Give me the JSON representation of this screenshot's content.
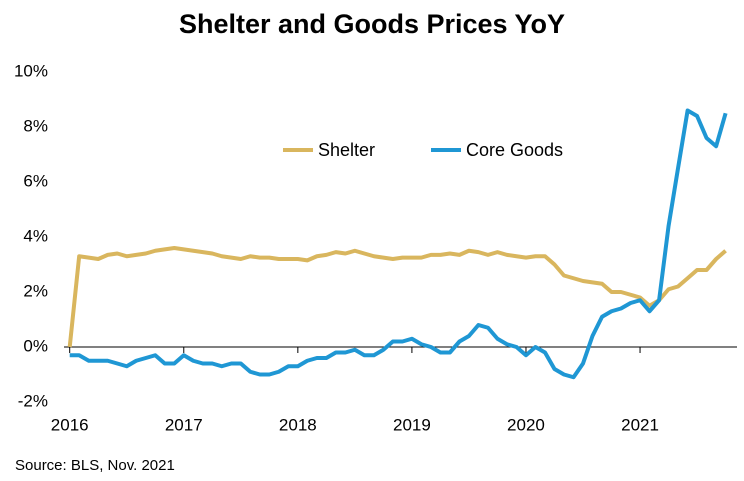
{
  "chart_data": {
    "type": "line",
    "title": "Shelter and Goods Prices YoY",
    "source": "Source: BLS, Nov. 2021",
    "x": [
      2016,
      2016.083,
      2016.167,
      2016.25,
      2016.333,
      2016.417,
      2016.5,
      2016.583,
      2016.667,
      2016.75,
      2016.833,
      2016.917,
      2017,
      2017.083,
      2017.167,
      2017.25,
      2017.333,
      2017.417,
      2017.5,
      2017.583,
      2017.667,
      2017.75,
      2017.833,
      2017.917,
      2018,
      2018.083,
      2018.167,
      2018.25,
      2018.333,
      2018.417,
      2018.5,
      2018.583,
      2018.667,
      2018.75,
      2018.833,
      2018.917,
      2019,
      2019.083,
      2019.167,
      2019.25,
      2019.333,
      2019.417,
      2019.5,
      2019.583,
      2019.667,
      2019.75,
      2019.833,
      2019.917,
      2020,
      2020.083,
      2020.167,
      2020.25,
      2020.333,
      2020.417,
      2020.5,
      2020.583,
      2020.667,
      2020.75,
      2020.833,
      2020.917,
      2021,
      2021.083,
      2021.167,
      2021.25,
      2021.333,
      2021.417,
      2021.5,
      2021.583,
      2021.667,
      2021.75
    ],
    "series": [
      {
        "name": "Shelter",
        "color": "#d9b65e",
        "values": [
          0,
          3.3,
          3.25,
          3.2,
          3.35,
          3.4,
          3.3,
          3.35,
          3.4,
          3.5,
          3.55,
          3.6,
          3.55,
          3.5,
          3.45,
          3.4,
          3.3,
          3.25,
          3.2,
          3.3,
          3.25,
          3.25,
          3.2,
          3.2,
          3.2,
          3.15,
          3.3,
          3.35,
          3.45,
          3.4,
          3.5,
          3.4,
          3.3,
          3.25,
          3.2,
          3.25,
          3.25,
          3.25,
          3.35,
          3.35,
          3.4,
          3.35,
          3.5,
          3.45,
          3.35,
          3.45,
          3.35,
          3.3,
          3.25,
          3.3,
          3.3,
          3.0,
          2.6,
          2.5,
          2.4,
          2.35,
          2.3,
          2.0,
          2.0,
          1.9,
          1.8,
          1.5,
          1.7,
          2.1,
          2.2,
          2.5,
          2.8,
          2.8,
          3.2,
          3.5
        ]
      },
      {
        "name": "Core Goods",
        "color": "#1f97d4",
        "values": [
          -0.3,
          -0.3,
          -0.5,
          -0.5,
          -0.5,
          -0.6,
          -0.7,
          -0.5,
          -0.4,
          -0.3,
          -0.6,
          -0.6,
          -0.3,
          -0.5,
          -0.6,
          -0.6,
          -0.7,
          -0.6,
          -0.6,
          -0.9,
          -1.0,
          -1.0,
          -0.9,
          -0.7,
          -0.7,
          -0.5,
          -0.4,
          -0.4,
          -0.2,
          -0.2,
          -0.1,
          -0.3,
          -0.3,
          -0.1,
          0.2,
          0.2,
          0.3,
          0.1,
          0.0,
          -0.2,
          -0.2,
          0.2,
          0.4,
          0.8,
          0.7,
          0.3,
          0.1,
          0.0,
          -0.3,
          0.0,
          -0.2,
          -0.8,
          -1.0,
          -1.1,
          -0.6,
          0.4,
          1.1,
          1.3,
          1.4,
          1.6,
          1.7,
          1.3,
          1.7,
          4.4,
          6.5,
          8.6,
          8.4,
          7.6,
          7.3,
          8.5
        ]
      }
    ],
    "xlim": [
      2015.95,
      2021.85
    ],
    "xticks": [
      2016,
      2017,
      2018,
      2019,
      2020,
      2021
    ],
    "ylim": [
      -2,
      10
    ],
    "yticks": [
      {
        "value": -2,
        "label": "-2%"
      },
      {
        "value": 0,
        "label": "0%"
      },
      {
        "value": 2,
        "label": "2%"
      },
      {
        "value": 4,
        "label": "4%"
      },
      {
        "value": 6,
        "label": "6%"
      },
      {
        "value": 8,
        "label": "8%"
      },
      {
        "value": 10,
        "label": "10%"
      }
    ],
    "grid": false,
    "legend": "top"
  }
}
